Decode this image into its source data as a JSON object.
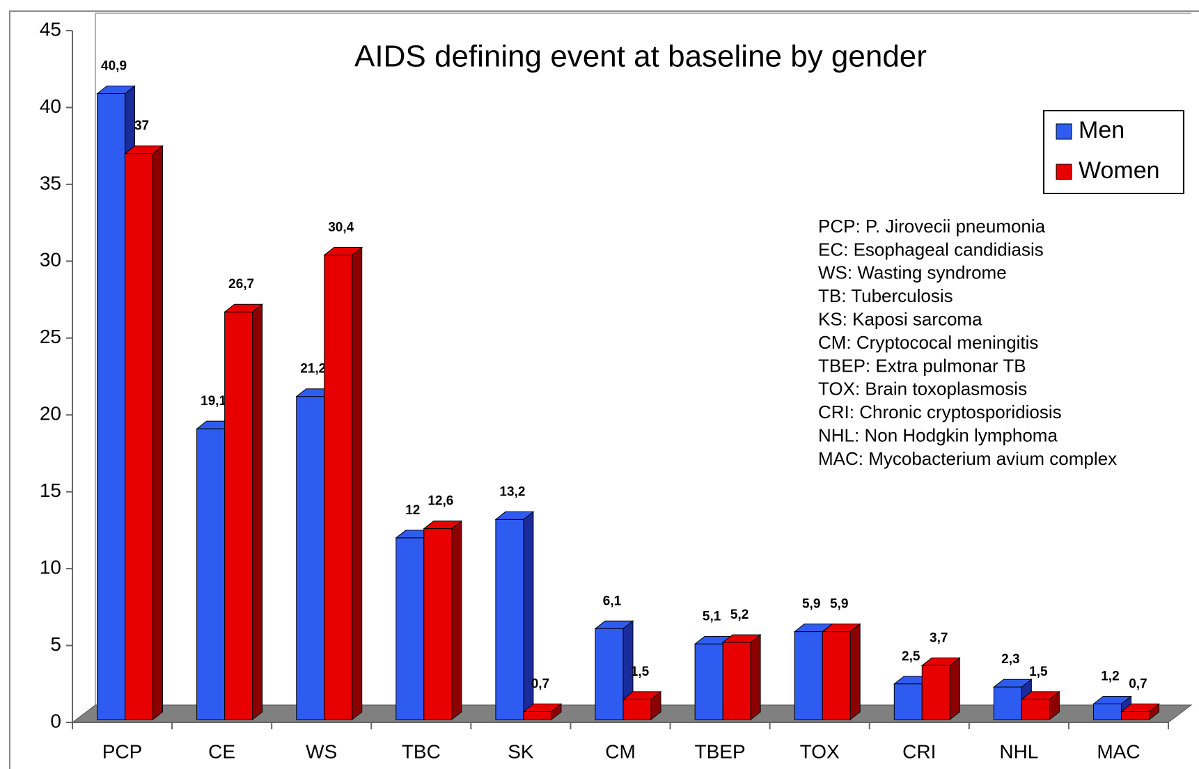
{
  "chart_data": {
    "type": "bar3d",
    "title": "AIDS defining event at baseline by gender",
    "categories": [
      "PCP",
      "CE",
      "WS",
      "TBC",
      "SK",
      "CM",
      "TBEP",
      "TOX",
      "CRI",
      "NHL",
      "MAC"
    ],
    "series": [
      {
        "name": "Men",
        "color": "#2f5cf0",
        "side": "#1a2c9c",
        "values": [
          40.9,
          19.1,
          21.2,
          12,
          13.2,
          6.1,
          5.1,
          5.9,
          2.5,
          2.3,
          1.2
        ],
        "value_labels": [
          "40,9",
          "19,1",
          "21,2",
          "12",
          "13,2",
          "6,1",
          "5,1",
          "5,9",
          "2,5",
          "2,3",
          "1,2"
        ]
      },
      {
        "name": "Women",
        "color": "#e80000",
        "side": "#8c0000",
        "values": [
          37,
          26.7,
          30.4,
          12.6,
          0.7,
          1.5,
          5.2,
          5.9,
          3.7,
          1.5,
          0.7
        ],
        "value_labels": [
          "37",
          "26,7",
          "30,4",
          "12,6",
          "0,7",
          "1,5",
          "5,2",
          "5,9",
          "3,7",
          "1,5",
          "0,7"
        ]
      }
    ],
    "ylim": [
      0,
      45
    ],
    "yticks": [
      0,
      5,
      10,
      15,
      20,
      25,
      30,
      35,
      40,
      45
    ],
    "legend": "top-right",
    "annotations": [
      "PCP: P. Jirovecii pneumonia",
      "EC: Esophageal candidiasis",
      "WS: Wasting syndrome",
      "TB: Tuberculosis",
      "KS: Kaposi sarcoma",
      "CM: Cryptococal meningitis",
      "TBEP: Extra pulmonar TB",
      "TOX: Brain toxoplasmosis",
      "CRI: Chronic cryptosporidiosis",
      "NHL: Non Hodgkin lymphoma",
      "MAC: Mycobacterium avium complex"
    ]
  }
}
